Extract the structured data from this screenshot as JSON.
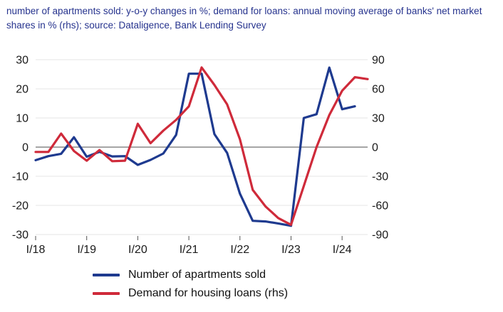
{
  "title": {
    "text": "number of apartments sold: y-o-y changes in %; demand for loans: annual moving average of banks' net market shares in % (rhs); source: Dataligence, Bank Lending Survey"
  },
  "chart_data": {
    "type": "line",
    "categories": [
      "I/18",
      "II/18",
      "III/18",
      "IV/18",
      "I/19",
      "II/19",
      "III/19",
      "IV/19",
      "I/20",
      "II/20",
      "III/20",
      "IV/20",
      "I/21",
      "II/21",
      "III/21",
      "IV/21",
      "I/22",
      "II/22",
      "III/22",
      "IV/22",
      "I/23",
      "II/23",
      "III/23",
      "IV/23",
      "I/24",
      "II/24",
      "III/24"
    ],
    "x_year_ticks": [
      {
        "i": 0,
        "label": "I/18"
      },
      {
        "i": 4,
        "label": "I/19"
      },
      {
        "i": 8,
        "label": "I/20"
      },
      {
        "i": 12,
        "label": "I/21"
      },
      {
        "i": 16,
        "label": "I/22"
      },
      {
        "i": 20,
        "label": "I/23"
      },
      {
        "i": 24,
        "label": "I/24"
      }
    ],
    "left_axis": {
      "ticks": [
        30,
        20,
        10,
        0,
        -10,
        -20,
        -30
      ],
      "range": [
        -30,
        30
      ]
    },
    "right_axis": {
      "ticks": [
        90,
        60,
        30,
        0,
        -30,
        -60,
        -90
      ],
      "range": [
        -90,
        90
      ]
    },
    "grid": "horizontal",
    "legend_position": "bottom-left",
    "series": [
      {
        "name": "Number of apartments sold",
        "axis": "left",
        "color": "#1e3a8f",
        "values": [
          -4.5,
          -3.1,
          -2.3,
          3.4,
          -3.3,
          -1.6,
          -3.2,
          -3.1,
          -6.1,
          -4.4,
          -2.2,
          4.2,
          25.2,
          25.2,
          4.5,
          -2,
          -16,
          -25.3,
          -25.5,
          -26.2,
          -27,
          10,
          11.3,
          27.3,
          13,
          14,
          null
        ]
      },
      {
        "name": "Demand for housing loans (rhs)",
        "axis": "right",
        "color": "#cf2a3a",
        "values": [
          -5,
          -5,
          14,
          -4,
          -14,
          -3,
          -14.5,
          -14,
          24,
          4,
          17,
          28,
          42,
          82,
          64,
          44,
          8,
          -44,
          -61,
          -73,
          -80,
          -40,
          0,
          33,
          58,
          72,
          70
        ]
      }
    ]
  },
  "legend": {
    "items": [
      {
        "label": "Number of apartments sold",
        "color": "#1e3a8f"
      },
      {
        "label": "Demand for housing loans (rhs)",
        "color": "#cf2a3a"
      }
    ]
  }
}
